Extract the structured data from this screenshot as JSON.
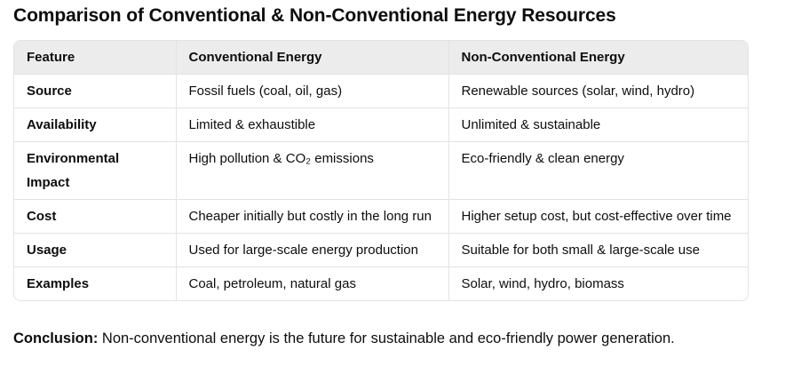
{
  "title": "Comparison of Conventional & Non-Conventional Energy Resources",
  "table": {
    "headers": [
      "Feature",
      "Conventional Energy",
      "Non-Conventional Energy"
    ],
    "rows": [
      [
        "Source",
        "Fossil fuels (coal, oil, gas)",
        "Renewable sources (solar, wind, hydro)"
      ],
      [
        "Availability",
        "Limited & exhaustible",
        "Unlimited & sustainable"
      ],
      [
        "Environmental Impact",
        "High pollution & CO₂ emissions",
        "Eco-friendly & clean energy"
      ],
      [
        "Cost",
        "Cheaper initially but costly in the long run",
        "Higher setup cost, but cost-effective over time"
      ],
      [
        "Usage",
        "Used for large-scale energy production",
        "Suitable for both small & large-scale use"
      ],
      [
        "Examples",
        "Coal, petroleum, natural gas",
        "Solar, wind, hydro, biomass"
      ]
    ]
  },
  "conclusion": {
    "label": "Conclusion:",
    "text": " Non-conventional energy is the future for sustainable and eco-friendly power generation."
  }
}
